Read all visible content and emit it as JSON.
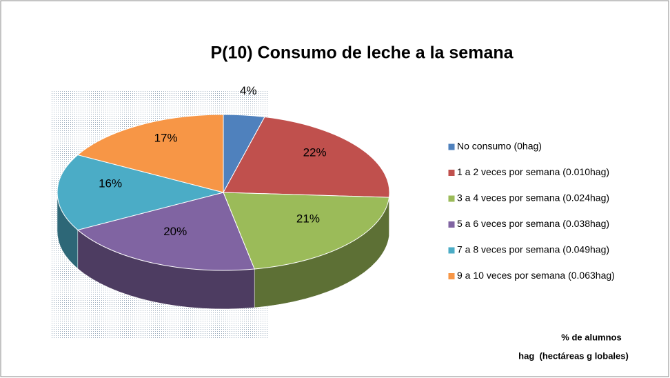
{
  "chart_data": {
    "type": "pie",
    "title": "P(10) Consumo de leche a la semana",
    "categories": [
      "No consumo (0hag)",
      "1 a 2 veces por semana (0.010hag)",
      "3 a 4 veces por semana (0.024hag)",
      "5 a 6 veces por semana (0.038hag)",
      "7 a 8 veces por semana (0.049hag)",
      "9 a 10 veces por semana (0.063hag)"
    ],
    "values": [
      4,
      22,
      21,
      20,
      16,
      17
    ],
    "value_labels": [
      "4%",
      "22%",
      "21%",
      "20%",
      "16%",
      "17%"
    ],
    "colors": [
      "#4f81bd",
      "#c0504d",
      "#9bbb59",
      "#8064a2",
      "#4bacc6",
      "#f79646"
    ],
    "legend": "right",
    "annotations": [
      "% de alumnos",
      "hag  (hectáreas g lobales)"
    ]
  }
}
